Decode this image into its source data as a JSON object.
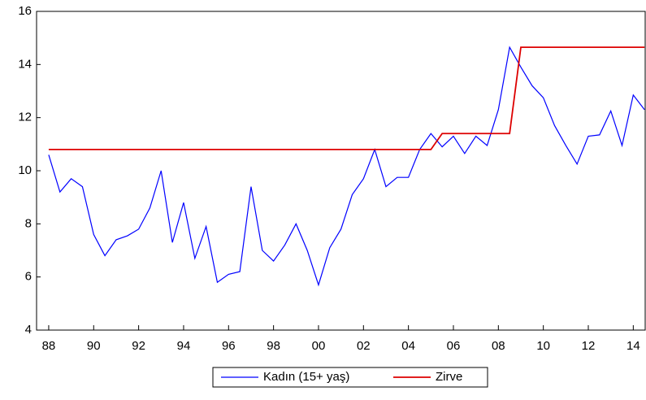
{
  "chart_data": {
    "type": "line",
    "x": [
      1988,
      1988.5,
      1989,
      1989.5,
      1990,
      1990.5,
      1991,
      1991.5,
      1992,
      1992.5,
      1993,
      1993.5,
      1994,
      1994.5,
      1995,
      1995.5,
      1996,
      1996.5,
      1997,
      1997.5,
      1998,
      1998.5,
      1999,
      1999.5,
      2000,
      2000.5,
      2001,
      2001.5,
      2002,
      2002.5,
      2003,
      2003.5,
      2004,
      2004.5,
      2005,
      2005.5,
      2006,
      2006.5,
      2007,
      2007.5,
      2008,
      2008.5,
      2009,
      2009.5,
      2010,
      2010.5,
      2011,
      2011.5,
      2012,
      2012.5,
      2013,
      2013.5,
      2014,
      2014.5
    ],
    "series": [
      {
        "name": "Kadın (15+ yaş)",
        "color": "#0000ff",
        "values": [
          10.6,
          9.2,
          9.7,
          9.4,
          7.6,
          6.8,
          7.4,
          7.55,
          7.8,
          8.6,
          10.0,
          7.3,
          8.8,
          6.7,
          7.9,
          5.8,
          6.1,
          6.2,
          9.4,
          7.0,
          6.6,
          7.2,
          8.0,
          7.0,
          5.7,
          7.1,
          7.8,
          9.1,
          9.7,
          10.8,
          9.4,
          9.75,
          9.75,
          10.8,
          11.4,
          10.9,
          11.3,
          10.65,
          11.3,
          10.95,
          12.3,
          14.65,
          13.9,
          13.2,
          12.75,
          11.7,
          10.95,
          10.25,
          11.3,
          11.35,
          12.25,
          10.95,
          12.85,
          12.3
        ]
      },
      {
        "name": "Zirve",
        "color": "#dd0000",
        "values": [
          10.8,
          10.8,
          10.8,
          10.8,
          10.8,
          10.8,
          10.8,
          10.8,
          10.8,
          10.8,
          10.8,
          10.8,
          10.8,
          10.8,
          10.8,
          10.8,
          10.8,
          10.8,
          10.8,
          10.8,
          10.8,
          10.8,
          10.8,
          10.8,
          10.8,
          10.8,
          10.8,
          10.8,
          10.8,
          10.8,
          10.8,
          10.8,
          10.8,
          10.8,
          10.8,
          11.4,
          11.4,
          11.4,
          11.4,
          11.4,
          11.4,
          11.4,
          14.65,
          14.65,
          14.65,
          14.65,
          14.65,
          14.65,
          14.65,
          14.65,
          14.65,
          14.65,
          14.65,
          14.65
        ]
      }
    ],
    "xlim": [
      1987.46,
      2014.53
    ],
    "xticks": [
      {
        "value": 1988,
        "label": "88"
      },
      {
        "value": 1990,
        "label": "90"
      },
      {
        "value": 1992,
        "label": "92"
      },
      {
        "value": 1994,
        "label": "94"
      },
      {
        "value": 1996,
        "label": "96"
      },
      {
        "value": 1998,
        "label": "98"
      },
      {
        "value": 2000,
        "label": "00"
      },
      {
        "value": 2002,
        "label": "02"
      },
      {
        "value": 2004,
        "label": "04"
      },
      {
        "value": 2006,
        "label": "06"
      },
      {
        "value": 2008,
        "label": "08"
      },
      {
        "value": 2010,
        "label": "10"
      },
      {
        "value": 2012,
        "label": "12"
      },
      {
        "value": 2014,
        "label": "14"
      }
    ],
    "ylim": [
      4,
      16
    ],
    "yticks": [
      4,
      6,
      8,
      10,
      12,
      14,
      16
    ],
    "legend": "bottom"
  }
}
